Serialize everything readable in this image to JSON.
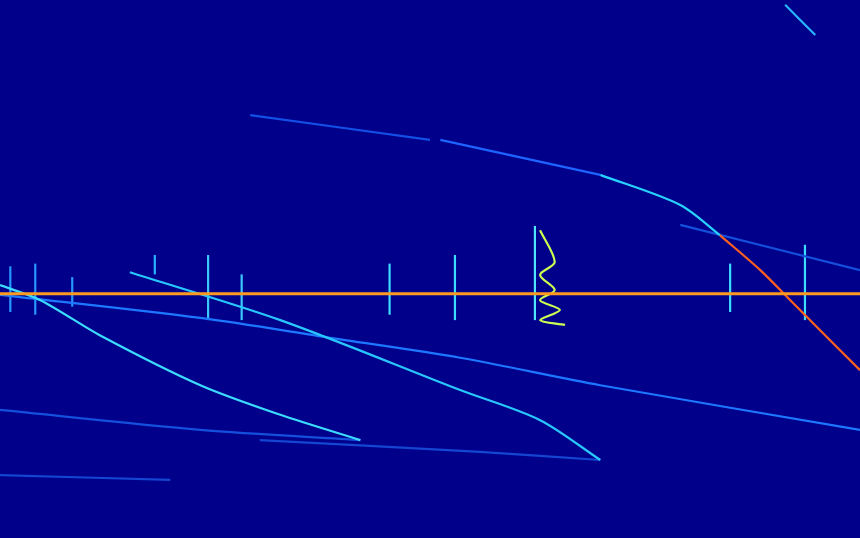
{
  "chart_data": {
    "type": "line",
    "grid": false,
    "tick_labels": false,
    "xlim": [
      0,
      100
    ],
    "ylim": [
      0,
      100
    ],
    "series": [
      {
        "color": "#ff9a20",
        "x": [
          0,
          100
        ],
        "values": [
          45.4,
          45.4
        ]
      },
      {
        "color": "#1e64ff",
        "x": [
          51.2,
          69.8
        ],
        "values": [
          74.0,
          67.5
        ]
      },
      {
        "color": "#28d2ff",
        "x": [
          69.8,
          79.1,
          83.7
        ],
        "values": [
          67.5,
          61.9,
          56.3
        ]
      },
      {
        "color": "#ff6020",
        "x": [
          83.7,
          88.4,
          91.9,
          95.3,
          100
        ],
        "values": [
          56.3,
          49.8,
          44.2,
          38.7,
          31.2
        ]
      },
      {
        "color": "#28b4ff",
        "x": [
          91.3,
          94.8
        ],
        "values": [
          99.1,
          93.5
        ]
      },
      {
        "color": "#1450e6",
        "x": [
          29.1,
          50
        ],
        "values": [
          78.6,
          74.0
        ]
      },
      {
        "color": "#3cdcff",
        "x": [
          0,
          4.7,
          11.6,
          23.3,
          32.6,
          41.9
        ],
        "values": [
          47.0,
          44.2,
          37.7,
          28.4,
          22.9,
          18.2
        ]
      },
      {
        "color": "#28c8ff",
        "x": [
          15.1,
          32.6,
          53.5,
          62.8,
          69.8
        ],
        "values": [
          49.4,
          40.5,
          27.5,
          21.9,
          14.5
        ]
      },
      {
        "color": "#1e78ff",
        "x": [
          0,
          23.3,
          38.4,
          53.5,
          69.8,
          100
        ],
        "values": [
          45.2,
          40.9,
          37.2,
          33.5,
          28.4,
          20.1
        ]
      },
      {
        "color": "#1450dc",
        "x": [
          0,
          23.3,
          41.9
        ],
        "values": [
          23.8,
          20.1,
          18.2
        ]
      },
      {
        "color": "#1446d2",
        "x": [
          0,
          19.8
        ],
        "values": [
          11.7,
          10.8
        ]
      },
      {
        "color": "#1446d2",
        "x": [
          30.2,
          55.8,
          69.8
        ],
        "values": [
          18.2,
          16.0,
          14.5
        ]
      },
      {
        "color": "#1450dc",
        "x": [
          79.1,
          100
        ],
        "values": [
          58.2,
          49.8
        ]
      },
      {
        "color": "#2896ff",
        "x": [
          1.2,
          1.2
        ],
        "values": [
          50.5,
          42.0
        ]
      },
      {
        "color": "#2896ff",
        "x": [
          4.1,
          4.1
        ],
        "values": [
          51.0,
          41.5
        ]
      },
      {
        "color": "#2896ff",
        "x": [
          8.4,
          8.4
        ],
        "values": [
          48.5,
          43.0
        ]
      },
      {
        "color": "#28b4ff",
        "x": [
          18.0,
          18.0
        ],
        "values": [
          52.6,
          49.0
        ]
      },
      {
        "color": "#3cc8ff",
        "x": [
          24.2,
          24.2
        ],
        "values": [
          52.6,
          40.5
        ]
      },
      {
        "color": "#3cc8ff",
        "x": [
          28.1,
          28.1
        ],
        "values": [
          49.0,
          40.5
        ]
      },
      {
        "color": "#3cdcff",
        "x": [
          45.3,
          45.3
        ],
        "values": [
          51.0,
          41.5
        ]
      },
      {
        "color": "#3cdcff",
        "x": [
          52.9,
          52.9
        ],
        "values": [
          52.6,
          40.5
        ]
      },
      {
        "color": "#50e6ff",
        "x": [
          62.2,
          62.2
        ],
        "values": [
          58.0,
          40.5
        ]
      },
      {
        "color": "#3cdcff",
        "x": [
          84.9,
          84.9
        ],
        "values": [
          51.0,
          42.0
        ]
      },
      {
        "color": "#3cdcff",
        "x": [
          93.6,
          93.6
        ],
        "values": [
          54.5,
          40.5
        ]
      },
      {
        "color": "#c8ff50",
        "x": [
          62.8,
          64.5,
          62.8,
          64.5,
          62.8,
          65.1,
          62.8,
          65.7
        ],
        "values": [
          57.2,
          51.3,
          48.9,
          46.1,
          44.2,
          42.4,
          40.5,
          39.6
        ]
      }
    ]
  }
}
